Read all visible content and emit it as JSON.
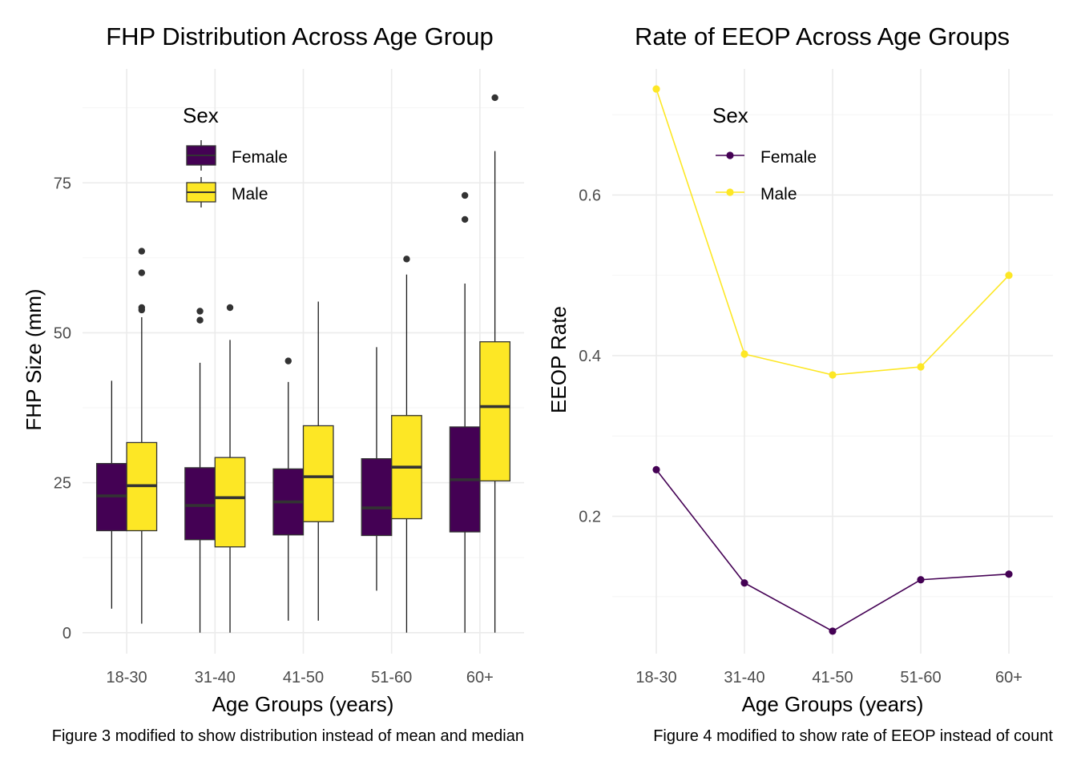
{
  "colors": {
    "female": "#440154",
    "male": "#FDE725",
    "outline": "#333333",
    "whisker": "#1a1a1a",
    "outlier": "#333333"
  },
  "chart_data": [
    {
      "type": "box",
      "title": "FHP Distribution Across Age Group",
      "xlabel": "Age Groups (years)",
      "ylabel": "FHP Size (mm)",
      "caption": "Figure 3 modified to show distribution instead of mean and median",
      "categories": [
        "18-30",
        "31-40",
        "41-50",
        "51-60",
        "60+"
      ],
      "ylim": [
        -3.5,
        94
      ],
      "yticks": [
        0,
        25,
        50,
        75
      ],
      "yticklabels": [
        "0",
        "25",
        "50",
        "75"
      ],
      "grid": true,
      "legend": {
        "title": "Sex",
        "position": "top-left-inside",
        "entries": [
          "Female",
          "Male"
        ]
      },
      "series": [
        {
          "name": "Female",
          "boxes": [
            {
              "min": 4,
              "q1": 17,
              "median": 22.8,
              "q3": 28.2,
              "max": 42,
              "outliers": []
            },
            {
              "min": 0,
              "q1": 15.5,
              "median": 21.2,
              "q3": 27.5,
              "max": 45,
              "outliers": [
                52.1,
                53.6
              ]
            },
            {
              "min": 2,
              "q1": 16.3,
              "median": 21.8,
              "q3": 27.3,
              "max": 41.8,
              "outliers": [
                45.3
              ]
            },
            {
              "min": 7,
              "q1": 16.2,
              "median": 20.8,
              "q3": 29,
              "max": 47.6,
              "outliers": []
            },
            {
              "min": 0,
              "q1": 16.8,
              "median": 25.5,
              "q3": 34.3,
              "max": 58.2,
              "outliers": [
                68.9,
                72.9
              ]
            }
          ]
        },
        {
          "name": "Male",
          "boxes": [
            {
              "min": 1.5,
              "q1": 17,
              "median": 24.5,
              "q3": 31.7,
              "max": 52.6,
              "outliers": [
                53.8,
                54.2,
                60,
                63.6
              ]
            },
            {
              "min": 0,
              "q1": 14.3,
              "median": 22.5,
              "q3": 29.2,
              "max": 48.8,
              "outliers": [
                54.2
              ]
            },
            {
              "min": 2,
              "q1": 18.5,
              "median": 26,
              "q3": 34.5,
              "max": 55.2,
              "outliers": []
            },
            {
              "min": 0,
              "q1": 19,
              "median": 27.6,
              "q3": 36.2,
              "max": 59.7,
              "outliers": [
                62.3
              ]
            },
            {
              "min": 0,
              "q1": 25.3,
              "median": 37.7,
              "q3": 48.5,
              "max": 80.3,
              "outliers": [
                89.2
              ]
            }
          ]
        }
      ]
    },
    {
      "type": "line",
      "title": "Rate of EEOP Across Age Groups",
      "xlabel": "Age Groups (years)",
      "ylabel": "EEOP Rate",
      "caption": "Figure 4 modified to show rate of EEOP instead of count",
      "categories": [
        "18-30",
        "31-40",
        "41-50",
        "51-60",
        "60+"
      ],
      "ylim": [
        0.029,
        0.757
      ],
      "yticks": [
        0.2,
        0.4,
        0.6
      ],
      "yticklabels": [
        "0.2",
        "0.4",
        "0.6"
      ],
      "grid": true,
      "legend": {
        "title": "Sex",
        "position": "top-left-inside",
        "entries": [
          "Female",
          "Male"
        ]
      },
      "series": [
        {
          "name": "Female",
          "values": [
            0.258,
            0.117,
            0.057,
            0.121,
            0.128
          ]
        },
        {
          "name": "Male",
          "values": [
            0.732,
            0.402,
            0.376,
            0.386,
            0.5
          ]
        }
      ]
    }
  ]
}
